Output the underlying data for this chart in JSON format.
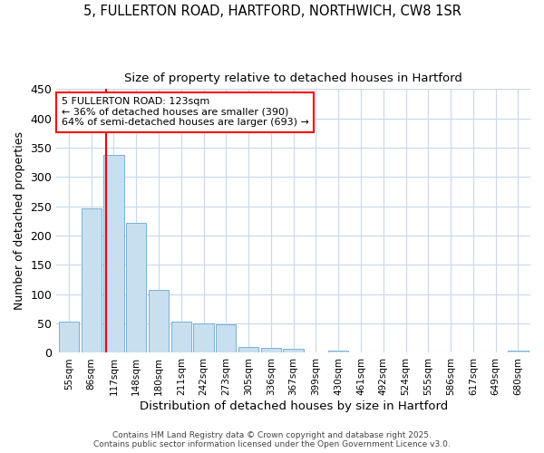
{
  "title1": "5, FULLERTON ROAD, HARTFORD, NORTHWICH, CW8 1SR",
  "title2": "Size of property relative to detached houses in Hartford",
  "xlabel": "Distribution of detached houses by size in Hartford",
  "ylabel": "Number of detached properties",
  "categories": [
    "55sqm",
    "86sqm",
    "117sqm",
    "148sqm",
    "180sqm",
    "211sqm",
    "242sqm",
    "273sqm",
    "305sqm",
    "336sqm",
    "367sqm",
    "399sqm",
    "430sqm",
    "461sqm",
    "492sqm",
    "524sqm",
    "555sqm",
    "586sqm",
    "617sqm",
    "649sqm",
    "680sqm"
  ],
  "values": [
    53,
    247,
    337,
    222,
    107,
    53,
    50,
    49,
    10,
    9,
    7,
    0,
    4,
    0,
    0,
    0,
    0,
    0,
    0,
    0,
    4
  ],
  "bar_color": "#c8dff0",
  "bar_edge_color": "#7ab0d4",
  "grid_color": "#c8d8ec",
  "vline_color": "red",
  "vline_x_index": 2,
  "annotation_text": "5 FULLERTON ROAD: 123sqm\n← 36% of detached houses are smaller (390)\n64% of semi-detached houses are larger (693) →",
  "annotation_box_color": "white",
  "annotation_box_edge_color": "red",
  "ylim": [
    0,
    450
  ],
  "yticks": [
    0,
    50,
    100,
    150,
    200,
    250,
    300,
    350,
    400,
    450
  ],
  "footer1": "Contains HM Land Registry data © Crown copyright and database right 2025.",
  "footer2": "Contains public sector information licensed under the Open Government Licence v3.0.",
  "bg_color": "#ffffff",
  "plot_bg_color": "#ffffff"
}
